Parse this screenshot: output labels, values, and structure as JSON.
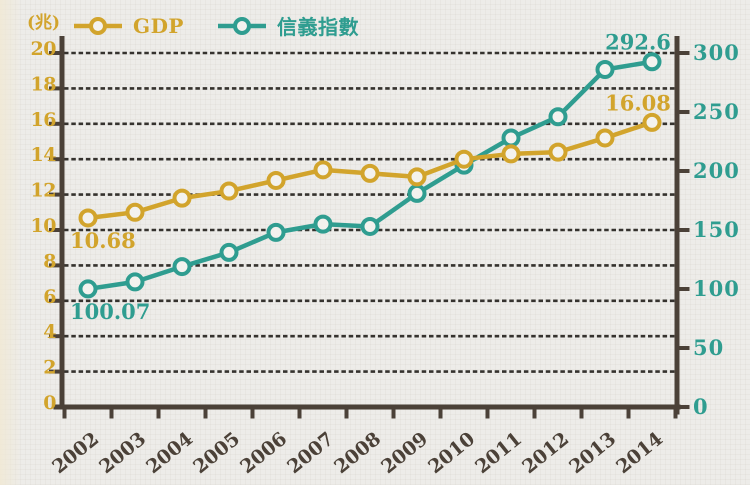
{
  "colors": {
    "gdp": "#D2A42C",
    "sinyi": "#2F9D90",
    "axis": "#4B4138",
    "grid": "#35322E",
    "marker_fill": "#F3F2EE",
    "background": "#EDECE9",
    "year_label": "#4B4138"
  },
  "chart_data": {
    "type": "line",
    "title": "",
    "legend_position": "top-left",
    "grid": "dashed horizontal",
    "categories": [
      "2002",
      "2003",
      "2004",
      "2005",
      "2006",
      "2007",
      "2008",
      "2009",
      "2010",
      "2011",
      "2012",
      "2013",
      "2014"
    ],
    "series": [
      {
        "name": "GDP",
        "axis": "left",
        "color": "#D2A42C",
        "marker": "open-circle",
        "values": [
          10.68,
          11.0,
          11.8,
          12.2,
          12.8,
          13.4,
          13.2,
          13.0,
          14.0,
          14.3,
          14.4,
          15.2,
          16.08
        ]
      },
      {
        "name": "信義指數",
        "axis": "right",
        "color": "#2F9D90",
        "marker": "open-circle",
        "values": [
          100.07,
          106,
          119,
          131,
          148,
          155,
          153,
          181,
          205,
          228,
          246,
          286,
          292.6
        ]
      }
    ],
    "left_axis": {
      "unit": "(兆)",
      "min": 0,
      "max": 20,
      "step": 2,
      "tick_labels": [
        "0",
        "2",
        "4",
        "6",
        "8",
        "10",
        "12",
        "14",
        "16",
        "18",
        "20"
      ]
    },
    "right_axis": {
      "min": 0,
      "max": 300,
      "step": 50,
      "tick_labels": [
        "0",
        "50",
        "100",
        "150",
        "200",
        "250",
        "300"
      ]
    },
    "annotations": [
      {
        "text": "10.68",
        "series": "GDP",
        "category": "2002",
        "placement": "below"
      },
      {
        "text": "100.07",
        "series": "信義指數",
        "category": "2002",
        "placement": "below"
      },
      {
        "text": "16.08",
        "series": "GDP",
        "category": "2014",
        "placement": "above"
      },
      {
        "text": "292.6",
        "series": "信義指數",
        "category": "2014",
        "placement": "above"
      }
    ]
  }
}
